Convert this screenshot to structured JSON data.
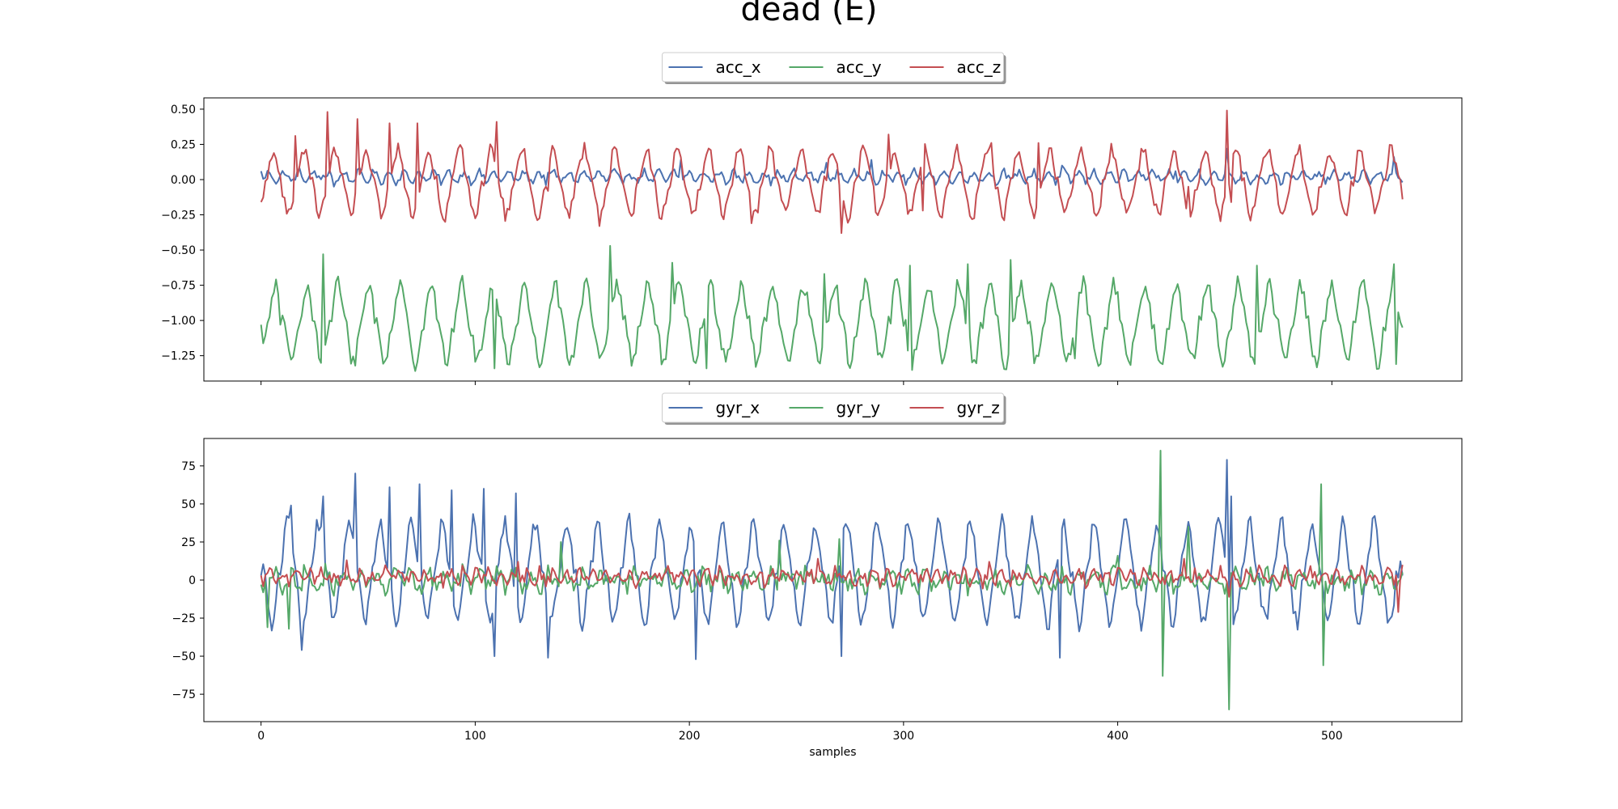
{
  "title": "dead (E)",
  "colors": {
    "x": "#4c72b0",
    "y": "#55a868",
    "z": "#c44e52"
  },
  "chart_data": [
    {
      "type": "line",
      "id": "acc",
      "xlim": [
        -26.7,
        560.7
      ],
      "ylim": [
        -1.43,
        0.58
      ],
      "x_ticks": [
        0,
        100,
        200,
        300,
        400,
        500
      ],
      "y_ticks": [
        0.5,
        0.25,
        0.0,
        -0.25,
        -0.5,
        -0.75,
        -1.0,
        -1.25
      ],
      "y_tick_labels": [
        "0.50",
        "0.25",
        "0.00",
        "−0.25",
        "−0.50",
        "−0.75",
        "−1.00",
        "−1.25"
      ],
      "show_x_tick_labels": false,
      "xlabel": "",
      "legend_position": "top-center",
      "n_samples": 534,
      "series": [
        {
          "name": "acc_x",
          "color_key": "x",
          "base": 0.02,
          "amp": 0.04,
          "period": 7,
          "noise": 0.025,
          "anchors": [
            [
              0,
              0.06
            ],
            [
              29,
              0.03
            ],
            [
              34,
              -0.05
            ],
            [
              134,
              0.05
            ],
            [
              196,
              0.14
            ],
            [
              264,
              0.12
            ],
            [
              285,
              0.14
            ],
            [
              374,
              0.1
            ],
            [
              427,
              0.06
            ],
            [
              447,
              0.0
            ],
            [
              451,
              0.22
            ],
            [
              466,
              0.01
            ],
            [
              520,
              0.02
            ],
            [
              529,
              0.16
            ],
            [
              533,
              -0.02
            ]
          ]
        },
        {
          "name": "acc_y",
          "color_key": "y",
          "base": -1.02,
          "amp": 0.28,
          "period": 14.5,
          "noise": 0.06,
          "anchors": [
            [
              0,
              -1.03
            ],
            [
              9,
              -1.03
            ],
            [
              29,
              -0.53
            ],
            [
              109,
              -1.34
            ],
            [
              163,
              -0.47
            ],
            [
              192,
              -0.59
            ],
            [
              208,
              -1.34
            ],
            [
              263,
              -0.67
            ],
            [
              303,
              -0.61
            ],
            [
              330,
              -0.6
            ],
            [
              350,
              -0.57
            ],
            [
              380,
              -1.27
            ],
            [
              465,
              -0.61
            ],
            [
              529,
              -0.6
            ],
            [
              530,
              -1.31
            ],
            [
              533,
              -1.05
            ]
          ]
        },
        {
          "name": "acc_z",
          "color_key": "z",
          "base": -0.02,
          "amp": 0.24,
          "period": 14.5,
          "noise": 0.05,
          "anchors": [
            [
              0,
              -0.16
            ],
            [
              10,
              -0.12
            ],
            [
              16,
              0.31
            ],
            [
              31,
              0.48
            ],
            [
              45,
              0.43
            ],
            [
              60,
              0.4
            ],
            [
              73,
              0.4
            ],
            [
              110,
              0.41
            ],
            [
              134,
              -0.08
            ],
            [
              158,
              -0.33
            ],
            [
              229,
              -0.31
            ],
            [
              271,
              -0.38
            ],
            [
              293,
              0.32
            ],
            [
              309,
              -0.22
            ],
            [
              341,
              0.26
            ],
            [
              363,
              0.26
            ],
            [
              433,
              -0.05
            ],
            [
              451,
              0.49
            ],
            [
              453,
              -0.16
            ],
            [
              521,
              -0.19
            ],
            [
              533,
              -0.14
            ]
          ]
        }
      ]
    },
    {
      "type": "line",
      "id": "gyr",
      "xlim": [
        -26.7,
        560.7
      ],
      "ylim": [
        -93,
        93
      ],
      "x_ticks": [
        0,
        100,
        200,
        300,
        400,
        500
      ],
      "y_ticks": [
        75,
        50,
        25,
        0,
        -25,
        -50,
        -75
      ],
      "y_tick_labels": [
        "75",
        "50",
        "25",
        "0",
        "−25",
        "−50",
        "−75"
      ],
      "x_tick_labels": [
        "0",
        "100",
        "200",
        "300",
        "400",
        "500"
      ],
      "show_x_tick_labels": true,
      "xlabel": "samples",
      "legend_position": "top-center",
      "n_samples": 534,
      "series": [
        {
          "name": "gyr_x",
          "color_key": "x",
          "base": 5,
          "amp": 33,
          "period": 14.5,
          "noise": 6,
          "anchors": [
            [
              0,
              3
            ],
            [
              14,
              49
            ],
            [
              19,
              -46
            ],
            [
              29,
              55
            ],
            [
              44,
              70
            ],
            [
              60,
              61
            ],
            [
              74,
              63
            ],
            [
              89,
              59
            ],
            [
              104,
              60
            ],
            [
              109,
              -50
            ],
            [
              119,
              57
            ],
            [
              134,
              -51
            ],
            [
              203,
              -52
            ],
            [
              271,
              -50
            ],
            [
              373,
              -51
            ],
            [
              451,
              79
            ],
            [
              453,
              55
            ],
            [
              533,
              3
            ]
          ]
        },
        {
          "name": "gyr_y",
          "color_key": "y",
          "base": 0,
          "amp": 5,
          "period": 8,
          "noise": 6,
          "anchors": [
            [
              0,
              -3
            ],
            [
              3,
              -31
            ],
            [
              13,
              -32
            ],
            [
              20,
              10
            ],
            [
              140,
              25
            ],
            [
              242,
              26
            ],
            [
              270,
              27
            ],
            [
              400,
              16
            ],
            [
              420,
              85
            ],
            [
              421,
              -63
            ],
            [
              433,
              35
            ],
            [
              452,
              -85
            ],
            [
              495,
              63
            ],
            [
              496,
              -56
            ],
            [
              533,
              5
            ]
          ]
        },
        {
          "name": "gyr_z",
          "color_key": "z",
          "base": 2,
          "amp": 4,
          "period": 6,
          "noise": 4,
          "anchors": [
            [
              0,
              3
            ],
            [
              40,
              13
            ],
            [
              120,
              12
            ],
            [
              260,
              14
            ],
            [
              340,
              12
            ],
            [
              431,
              14
            ],
            [
              452,
              -11
            ],
            [
              531,
              -21
            ],
            [
              533,
              10
            ]
          ]
        }
      ]
    }
  ]
}
